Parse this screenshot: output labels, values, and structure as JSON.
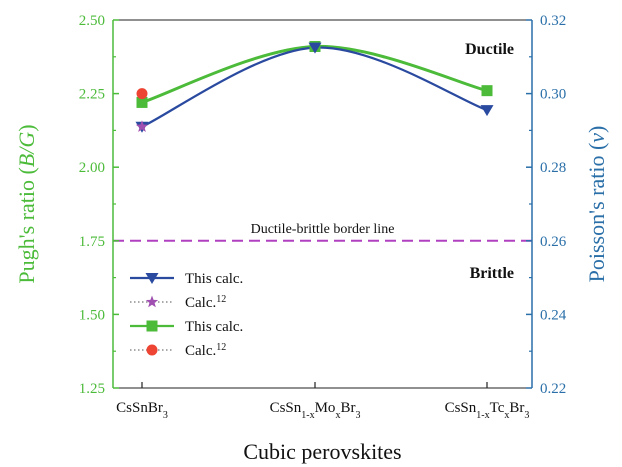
{
  "chart_data": {
    "type": "line",
    "title": "",
    "xlabel": "Cubic perovskites",
    "ylabel_left": {
      "text": "Pugh's ratio (",
      "var": "B/G",
      "close": ")"
    },
    "ylabel_right": {
      "text": "Poisson's ratio (",
      "var": "v",
      "close": ")"
    },
    "categories": [
      {
        "base": "CsSnBr",
        "parts": [
          {
            "t": "CsSnBr"
          },
          {
            "t": "3",
            "sub": true
          }
        ]
      },
      {
        "base": "CsSn1-xMoxBr3",
        "parts": [
          {
            "t": "CsSn"
          },
          {
            "t": "1-x",
            "sub": true
          },
          {
            "t": "Mo"
          },
          {
            "t": "x",
            "sub": true
          },
          {
            "t": "Br"
          },
          {
            "t": "3",
            "sub": true
          }
        ]
      },
      {
        "base": "CsSn1-xTcxBr3",
        "parts": [
          {
            "t": "CsSn"
          },
          {
            "t": "1-x",
            "sub": true
          },
          {
            "t": "Tc"
          },
          {
            "t": "x",
            "sub": true
          },
          {
            "t": "Br"
          },
          {
            "t": "3",
            "sub": true
          }
        ]
      }
    ],
    "left_axis": {
      "ylim": [
        1.25,
        2.5
      ],
      "ticks": [
        "1.25",
        "1.50",
        "1.75",
        "2.00",
        "2.25",
        "2.50"
      ],
      "color": "#4cbb3a"
    },
    "right_axis": {
      "ylim": [
        0.22,
        0.32
      ],
      "ticks": [
        "0.22",
        "0.24",
        "0.26",
        "0.28",
        "0.30",
        "0.32"
      ],
      "color": "#2a6fa8"
    },
    "series": [
      {
        "legend": "This calc.",
        "legend_sup": "",
        "axis": "right",
        "values": [
          0.291,
          0.3125,
          0.2955
        ],
        "color": "#2a4aa0",
        "marker": "triangle-down",
        "line": "solid"
      },
      {
        "legend": "Calc.",
        "legend_sup": "12",
        "axis": "right",
        "values": [
          0.291,
          null,
          null
        ],
        "color": "#a050b0",
        "marker": "star",
        "line": "dotted"
      },
      {
        "legend": "This calc.",
        "legend_sup": "",
        "axis": "left",
        "values": [
          2.22,
          2.41,
          2.26
        ],
        "color": "#4cbb3a",
        "marker": "square",
        "line": "solid"
      },
      {
        "legend": "Calc.",
        "legend_sup": "12",
        "axis": "left",
        "values": [
          2.25,
          null,
          null
        ],
        "color": "#ee4433",
        "marker": "circle",
        "line": "dotted"
      }
    ],
    "border_line": {
      "label": "Ductile-brittle border line",
      "value": 1.75,
      "axis": "left",
      "color": "#b040c0"
    },
    "annotations": [
      {
        "text": "Ductile",
        "region": "upper-right"
      },
      {
        "text": "Brittle",
        "region": "lower-right"
      }
    ],
    "legend_position": "lower-left",
    "grid": false
  }
}
